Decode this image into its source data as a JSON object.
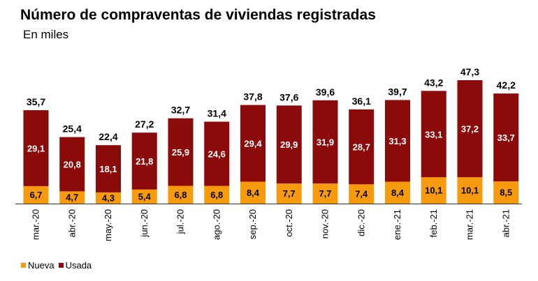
{
  "title": "Número de compraventas de viviendas registradas",
  "subtitle": "En miles",
  "chart_data": {
    "type": "bar",
    "stacked": true,
    "categories": [
      "mar.-20",
      "abr.-20",
      "may.-20",
      "jun.-20",
      "jul.-20",
      "ago.-20",
      "sep.-20",
      "oct.-20",
      "nov.-20",
      "dic.-20",
      "ene.-21",
      "feb.-21",
      "mar.-21",
      "abr.-21"
    ],
    "series": [
      {
        "name": "Nueva",
        "color": "#F79A0E",
        "values": [
          6.7,
          4.7,
          4.3,
          5.4,
          6.8,
          6.8,
          8.4,
          7.7,
          7.7,
          7.4,
          8.4,
          10.1,
          10.1,
          8.5
        ],
        "labels": [
          "6,7",
          "4,7",
          "4,3",
          "5,4",
          "6,8",
          "6,8",
          "8,4",
          "7,7",
          "7,7",
          "7,4",
          "8,4",
          "10,1",
          "10,1",
          "8,5"
        ]
      },
      {
        "name": "Usada",
        "color": "#8B0A0A",
        "values": [
          29.1,
          20.8,
          18.1,
          21.8,
          25.9,
          24.6,
          29.4,
          29.9,
          31.9,
          28.7,
          31.3,
          33.1,
          37.2,
          33.7
        ],
        "labels": [
          "29,1",
          "20,8",
          "18,1",
          "21,8",
          "25,9",
          "24,6",
          "29,4",
          "29,9",
          "31,9",
          "28,7",
          "31,3",
          "33,1",
          "37,2",
          "33,7"
        ]
      }
    ],
    "totals": [
      35.7,
      25.4,
      22.4,
      27.2,
      32.7,
      31.4,
      37.8,
      37.6,
      39.6,
      36.1,
      39.7,
      43.2,
      47.3,
      42.2
    ],
    "total_labels": [
      "35,7",
      "25,4",
      "22,4",
      "27,2",
      "32,7",
      "31,4",
      "37,8",
      "37,6",
      "39,6",
      "36,1",
      "39,7",
      "43,2",
      "47,3",
      "42,2"
    ],
    "ylim": [
      0,
      47.3
    ],
    "grid": false,
    "legend": "bottom-left"
  }
}
